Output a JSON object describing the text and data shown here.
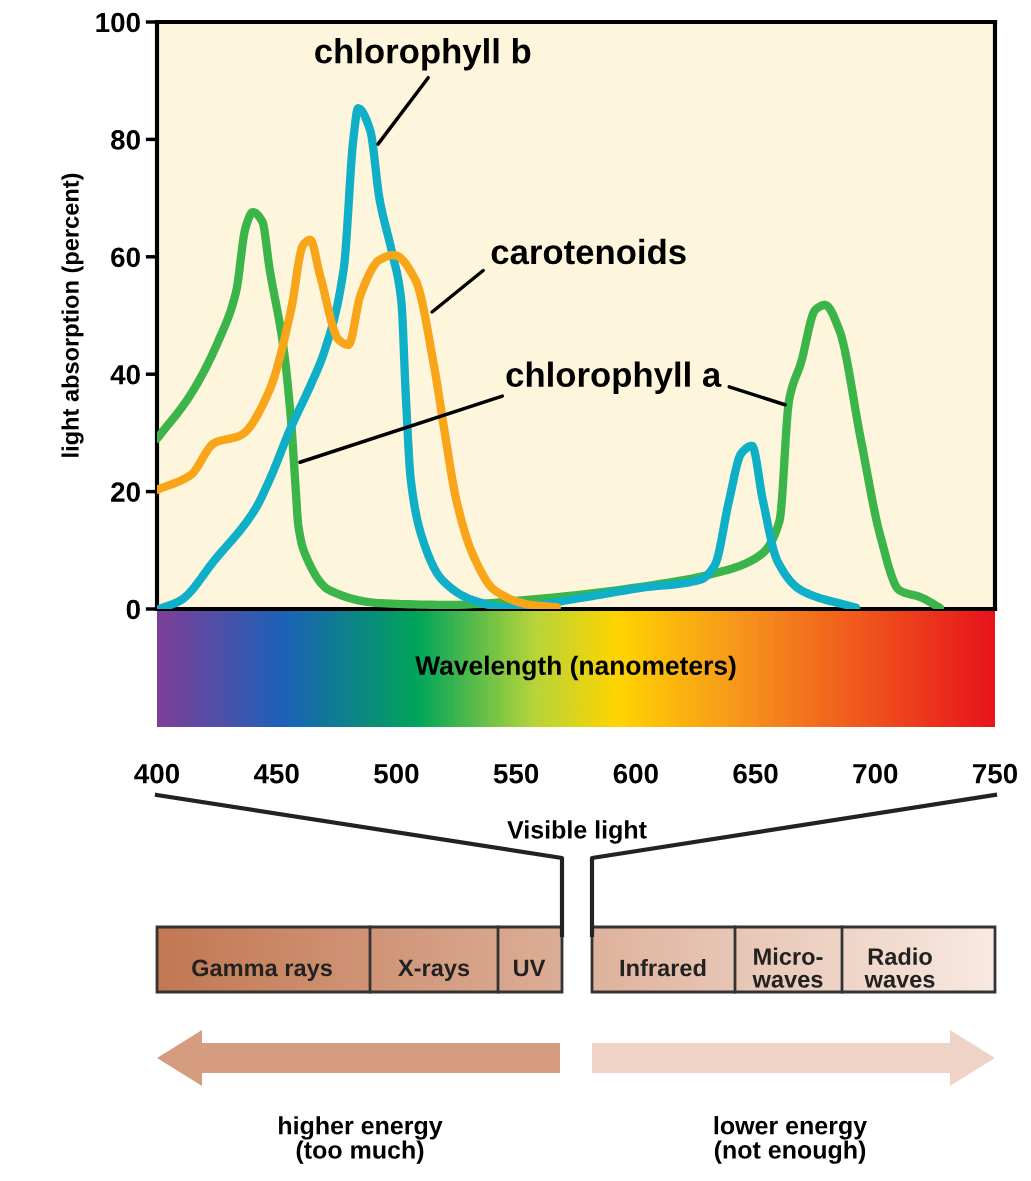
{
  "chart_data": {
    "type": "line",
    "xlabel": "Wavelength (nanometers)",
    "ylabel": "light absorption (percent)",
    "xlim": [
      400,
      750
    ],
    "xticks": [
      400,
      450,
      500,
      550,
      600,
      650,
      700,
      750
    ],
    "ylim": [
      0,
      100
    ],
    "yticks": [
      0,
      20,
      40,
      60,
      80,
      100
    ],
    "grid": false,
    "legend": false,
    "marker": "none",
    "line_style": "solid",
    "series": [
      {
        "name": "chlorophyll a",
        "color": "#3bb54a",
        "x": [
          400,
          414,
          426,
          433,
          437,
          440,
          444,
          447,
          453,
          456,
          458,
          459,
          462,
          472,
          493,
          522,
          564,
          606,
          635,
          652,
          660,
          664,
          669,
          675,
          679,
          685,
          694,
          702,
          710,
          719,
          727
        ],
        "values": [
          29,
          36.5,
          46,
          54,
          65,
          67.6,
          66,
          58,
          44,
          32,
          20,
          14.3,
          9.2,
          3.2,
          1,
          0.7,
          1.9,
          4,
          6.3,
          9.2,
          15,
          35.6,
          42,
          51,
          51.8,
          47.5,
          28.8,
          12.6,
          3.2,
          2,
          0.2
        ]
      },
      {
        "name": "chlorophyll b",
        "color": "#10afc8",
        "x": [
          401,
          410,
          424,
          441,
          447,
          456,
          464,
          470,
          478,
          482,
          484,
          489,
          493,
          498,
          502,
          504,
          506,
          511,
          519,
          532,
          547,
          577,
          602,
          627,
          633,
          639,
          644,
          648.5,
          653,
          659,
          669,
          692
        ],
        "values": [
          0,
          1.5,
          8.3,
          17,
          22,
          31,
          38,
          44,
          58,
          80,
          85.3,
          81.6,
          69.7,
          61,
          52.6,
          35.6,
          22,
          11.8,
          5,
          1.5,
          0.2,
          1.9,
          3.6,
          5,
          7.5,
          18.6,
          26.5,
          27.8,
          18.6,
          8.3,
          3.2,
          0.2
        ]
      },
      {
        "name": "carotenoids",
        "color": "#f9a51a",
        "x": [
          400,
          414,
          424,
          435,
          447,
          456,
          461,
          464,
          468,
          476,
          480,
          485,
          493,
          499,
          508,
          516,
          520,
          525,
          532,
          541,
          556,
          567
        ],
        "values": [
          20.3,
          22.8,
          28.3,
          29.6,
          37.3,
          51,
          62,
          62.9,
          57,
          45.8,
          45,
          53.5,
          59.5,
          60.3,
          56,
          40.7,
          30.5,
          18.6,
          9.2,
          3.2,
          0.7,
          0.3
        ]
      }
    ],
    "annotations": [
      "Visible light",
      "Gamma rays",
      "X-rays",
      "UV",
      "Infrared",
      "Micro-\nwaves",
      "Radio\nwaves",
      "higher energy\n(too much)",
      "lower energy\n(not enough)"
    ]
  }
}
